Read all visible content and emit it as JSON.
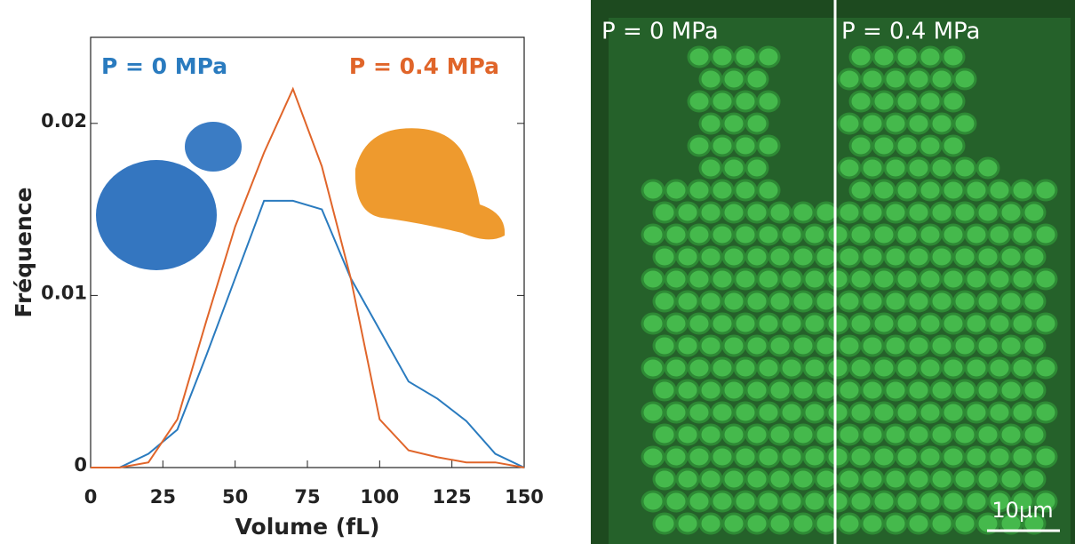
{
  "chart_data": {
    "type": "line",
    "x": [
      0,
      10,
      20,
      30,
      40,
      50,
      60,
      70,
      80,
      90,
      100,
      110,
      120,
      130,
      140,
      150
    ],
    "series": [
      {
        "name": "P = 0 MPa",
        "color": "#2a7bbf",
        "values": [
          0,
          0,
          0.0008,
          0.0022,
          0.0065,
          0.011,
          0.0155,
          0.0155,
          0.015,
          0.011,
          0.008,
          0.005,
          0.004,
          0.0027,
          0.0008,
          0
        ]
      },
      {
        "name": "P = 0.4 MPa",
        "color": "#e0652a",
        "values": [
          0,
          0,
          0.0003,
          0.0028,
          0.0085,
          0.014,
          0.0183,
          0.022,
          0.0175,
          0.011,
          0.0028,
          0.001,
          0.0006,
          0.0003,
          0.0003,
          0
        ]
      }
    ],
    "x_label": "Volume (fL)",
    "y_label": "Fréquence",
    "xlim": [
      0,
      150
    ],
    "xticks": [
      0,
      25,
      50,
      75,
      100,
      125,
      150
    ],
    "ylim": [
      0,
      0.025
    ],
    "yticks": [
      0,
      0.01,
      0.02
    ]
  },
  "image": {
    "labels": [
      "P = 0 MPa",
      "P = 0.4 MPa"
    ],
    "scale_bar": "10µm"
  }
}
